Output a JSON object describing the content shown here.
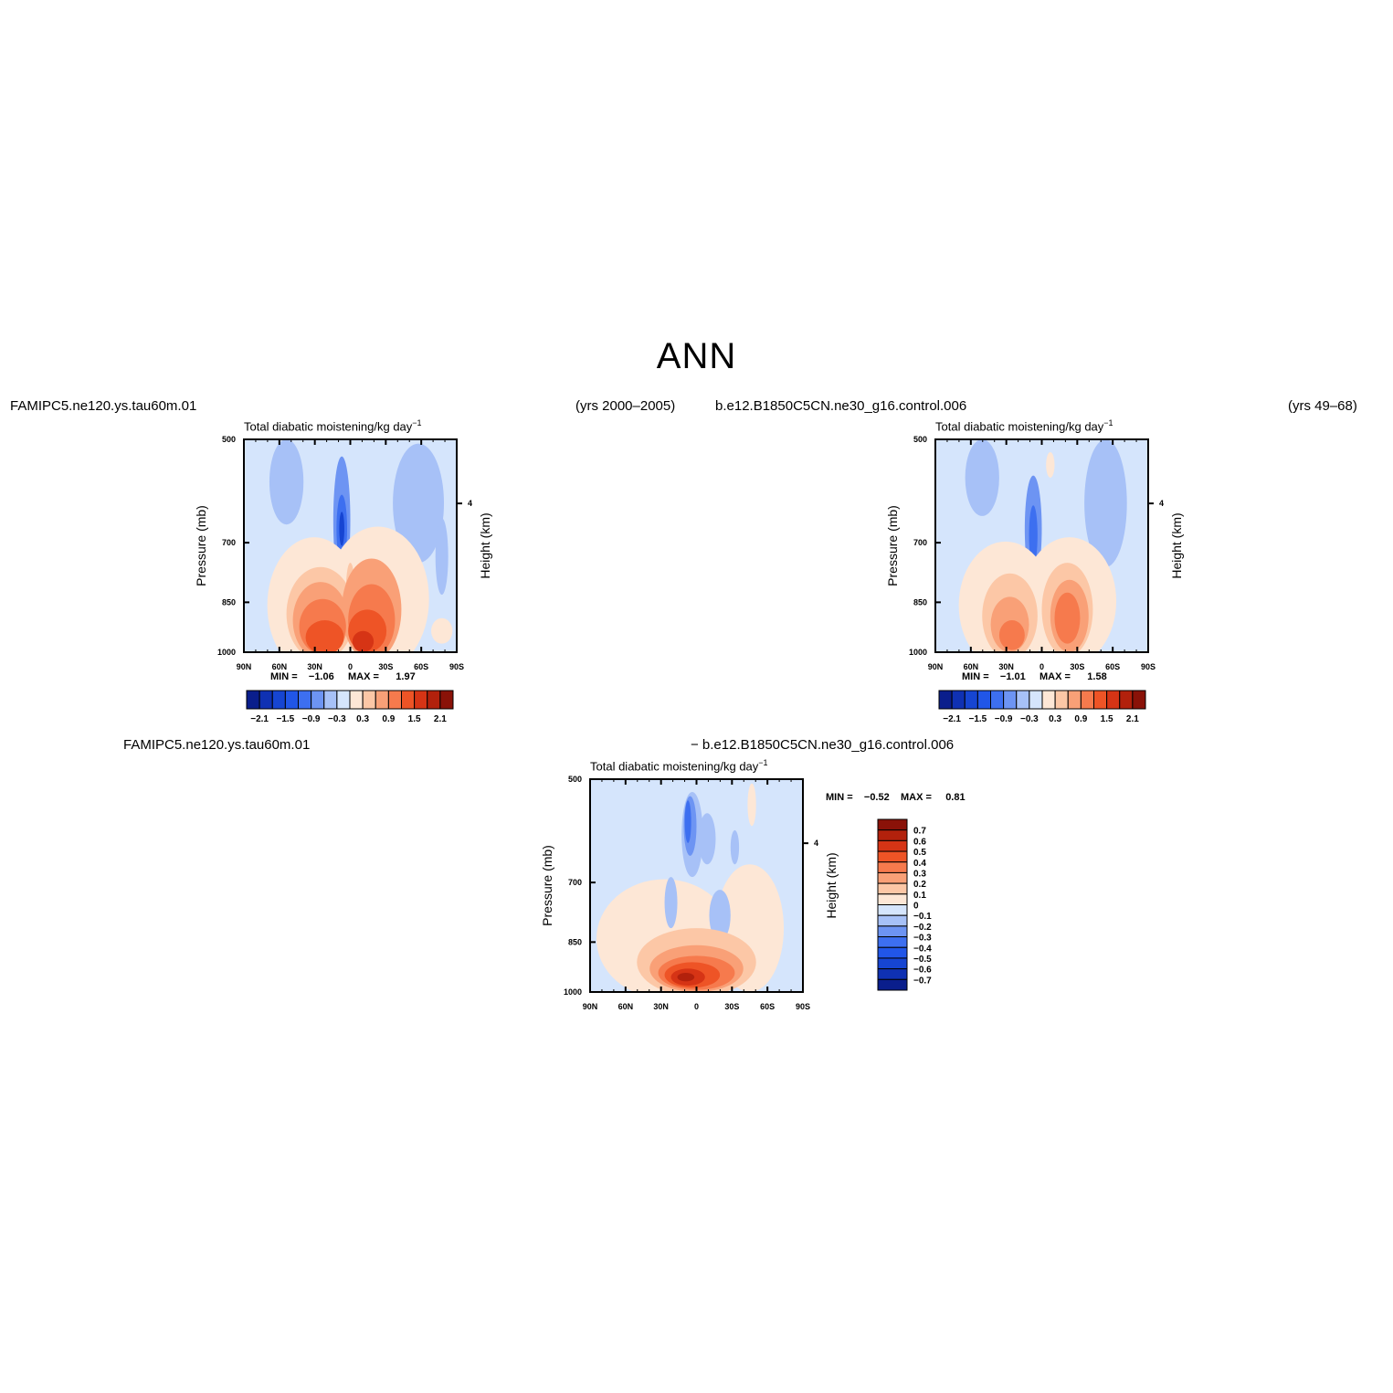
{
  "page": {
    "title": "ANN"
  },
  "panels": [
    {
      "case": "FAMIPC5.ne120.ys.tau60m.01",
      "yrs": "(yrs 2000–2005)",
      "title_main": "Total  diabatic  moistening/kg  day",
      "title_exp": "−1",
      "min_label": "MIN  =",
      "min_value": "−1.06",
      "max_label": "MAX  =",
      "max_value": "1.97"
    },
    {
      "case": "b.e12.B1850C5CN.ne30_g16.control.006",
      "yrs": "(yrs 49–68)",
      "title_main": "Total  diabatic  moistening/kg  day",
      "title_exp": "−1",
      "min_label": "MIN  =",
      "min_value": "−1.01",
      "max_label": "MAX  =",
      "max_value": "1.58"
    },
    {
      "case": "FAMIPC5.ne120.ys.tau60m.01",
      "case2": "−  b.e12.B1850C5CN.ne30_g16.control.006",
      "title_main": "Total  diabatic  moistening/kg  day",
      "title_exp": "−1",
      "min_label": "MIN  =",
      "min_value": "−0.52",
      "max_label": "MAX  =",
      "max_value": "0.81"
    }
  ],
  "chart_data": [
    {
      "type": "heatmap",
      "panel": 1,
      "title": "Total diabatic moistening/kg day⁻¹",
      "xlabel": "",
      "ylabel": "Pressure  (mb)",
      "ylabel_right": "Height  (km)",
      "x_ticks": [
        "90N",
        "60N",
        "30N",
        "0",
        "30S",
        "60S",
        "90S"
      ],
      "y_ticks": [
        "500",
        "700",
        "850",
        "1000"
      ],
      "y_right_ticks": [
        "4"
      ],
      "xlim": [
        90,
        -90
      ],
      "ylim": [
        1000,
        500
      ],
      "min": -1.06,
      "max": 1.97,
      "colorbar_labels": [
        "−2.1",
        "−1.5",
        "−0.9",
        "−0.3",
        "0.3",
        "0.9",
        "1.5",
        "2.1"
      ],
      "colorbar_colors": [
        "#0a1e8c",
        "#0f31b3",
        "#1645d2",
        "#2156e8",
        "#3d6ff0",
        "#6d94f3",
        "#a7c1f7",
        "#d5e5fc",
        "#fde7d6",
        "#fcc7a6",
        "#f9a077",
        "#f67a4d",
        "#ee5426",
        "#d63415",
        "#b2210c",
        "#8a1208"
      ]
    },
    {
      "type": "heatmap",
      "panel": 2,
      "title": "Total diabatic moistening/kg day⁻¹",
      "xlabel": "",
      "ylabel": "Pressure  (mb)",
      "ylabel_right": "Height  (km)",
      "x_ticks": [
        "90N",
        "60N",
        "30N",
        "0",
        "30S",
        "60S",
        "90S"
      ],
      "y_ticks": [
        "500",
        "700",
        "850",
        "1000"
      ],
      "y_right_ticks": [
        "4"
      ],
      "xlim": [
        90,
        -90
      ],
      "ylim": [
        1000,
        500
      ],
      "min": -1.01,
      "max": 1.58,
      "colorbar_labels": [
        "−2.1",
        "−1.5",
        "−0.9",
        "−0.3",
        "0.3",
        "0.9",
        "1.5",
        "2.1"
      ],
      "colorbar_colors": [
        "#0a1e8c",
        "#0f31b3",
        "#1645d2",
        "#2156e8",
        "#3d6ff0",
        "#6d94f3",
        "#a7c1f7",
        "#d5e5fc",
        "#fde7d6",
        "#fcc7a6",
        "#f9a077",
        "#f67a4d",
        "#ee5426",
        "#d63415",
        "#b2210c",
        "#8a1208"
      ]
    },
    {
      "type": "heatmap",
      "panel": 3,
      "title": "Total diabatic moistening/kg day⁻¹",
      "xlabel": "",
      "ylabel": "Pressure  (mb)",
      "ylabel_right": "Height  (km)",
      "x_ticks": [
        "90N",
        "60N",
        "30N",
        "0",
        "30S",
        "60S",
        "90S"
      ],
      "y_ticks": [
        "500",
        "700",
        "850",
        "1000"
      ],
      "y_right_ticks": [
        "4"
      ],
      "xlim": [
        90,
        -90
      ],
      "ylim": [
        1000,
        500
      ],
      "min": -0.52,
      "max": 0.81,
      "colorbar_labels": [
        "0.7",
        "0.6",
        "0.5",
        "0.4",
        "0.3",
        "0.2",
        "0.1",
        "0",
        "−0.1",
        "−0.2",
        "−0.3",
        "−0.4",
        "−0.5",
        "−0.6",
        "−0.7"
      ],
      "colorbar_colors": [
        "#8a1208",
        "#b2210c",
        "#d63415",
        "#ee5426",
        "#f67a4d",
        "#f9a077",
        "#fcc7a6",
        "#fde7d6",
        "#d5e5fc",
        "#a7c1f7",
        "#6d94f3",
        "#3d6ff0",
        "#2156e8",
        "#1645d2",
        "#0f31b3",
        "#0a1e8c"
      ]
    }
  ]
}
